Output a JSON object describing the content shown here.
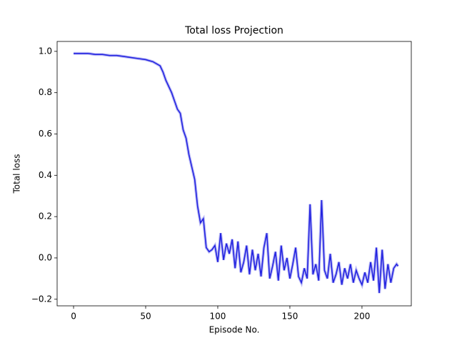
{
  "chart_data": {
    "type": "line",
    "title": "Total loss Projection",
    "x_label": "Episode No.",
    "y_label": "Total loss",
    "x": [
      0,
      5,
      10,
      15,
      20,
      25,
      30,
      35,
      40,
      45,
      50,
      55,
      60,
      62,
      64,
      66,
      68,
      70,
      72,
      74,
      76,
      78,
      80,
      82,
      84,
      86,
      88,
      90,
      92,
      94,
      96,
      98,
      100,
      102,
      104,
      106,
      108,
      110,
      112,
      114,
      116,
      118,
      120,
      122,
      124,
      126,
      128,
      130,
      132,
      134,
      136,
      138,
      140,
      142,
      144,
      146,
      148,
      150,
      152,
      154,
      156,
      158,
      160,
      162,
      164,
      166,
      168,
      170,
      172,
      174,
      176,
      178,
      180,
      182,
      184,
      186,
      188,
      190,
      192,
      194,
      196,
      198,
      200,
      202,
      204,
      206,
      208,
      210,
      212,
      214,
      216,
      218,
      220,
      222,
      224,
      225
    ],
    "series": [
      {
        "name": "Total loss",
        "color": "#2323e0",
        "values": [
          0.99,
          0.99,
          0.99,
          0.985,
          0.985,
          0.98,
          0.98,
          0.975,
          0.97,
          0.965,
          0.96,
          0.95,
          0.93,
          0.9,
          0.86,
          0.83,
          0.8,
          0.76,
          0.72,
          0.7,
          0.62,
          0.58,
          0.5,
          0.44,
          0.38,
          0.25,
          0.17,
          0.19,
          0.05,
          0.03,
          0.04,
          0.06,
          -0.02,
          0.12,
          -0.01,
          0.07,
          0.02,
          0.09,
          -0.05,
          0.08,
          -0.07,
          -0.02,
          0.06,
          -0.08,
          0.04,
          -0.06,
          0.02,
          -0.09,
          0.05,
          0.12,
          -0.1,
          -0.04,
          0.03,
          -0.11,
          0.06,
          -0.06,
          0.0,
          -0.1,
          -0.03,
          0.05,
          -0.09,
          -0.12,
          -0.05,
          -0.1,
          0.26,
          -0.08,
          -0.03,
          -0.11,
          0.28,
          -0.06,
          -0.1,
          0.02,
          -0.12,
          -0.08,
          -0.02,
          -0.13,
          -0.05,
          -0.1,
          -0.03,
          -0.12,
          -0.06,
          -0.1,
          -0.13,
          -0.07,
          -0.12,
          -0.02,
          -0.11,
          0.05,
          -0.17,
          0.04,
          -0.15,
          -0.03,
          -0.12,
          -0.05,
          -0.03,
          -0.04
        ]
      }
    ],
    "xlim": [
      -11.4,
      234.2
    ],
    "xticks": [
      0,
      50,
      100,
      150,
      200
    ],
    "ylim": [
      -0.232,
      1.048
    ],
    "yticks": [
      {
        "value": -0.2,
        "label": "−0.2"
      },
      {
        "value": 0,
        "label": "0.0"
      },
      {
        "value": 0.2,
        "label": "0.2"
      },
      {
        "value": 0.4,
        "label": "0.4"
      },
      {
        "value": 0.6,
        "label": "0.6"
      },
      {
        "value": 0.8,
        "label": "0.8"
      },
      {
        "value": 1,
        "label": "1.0"
      }
    ],
    "grid": false
  }
}
